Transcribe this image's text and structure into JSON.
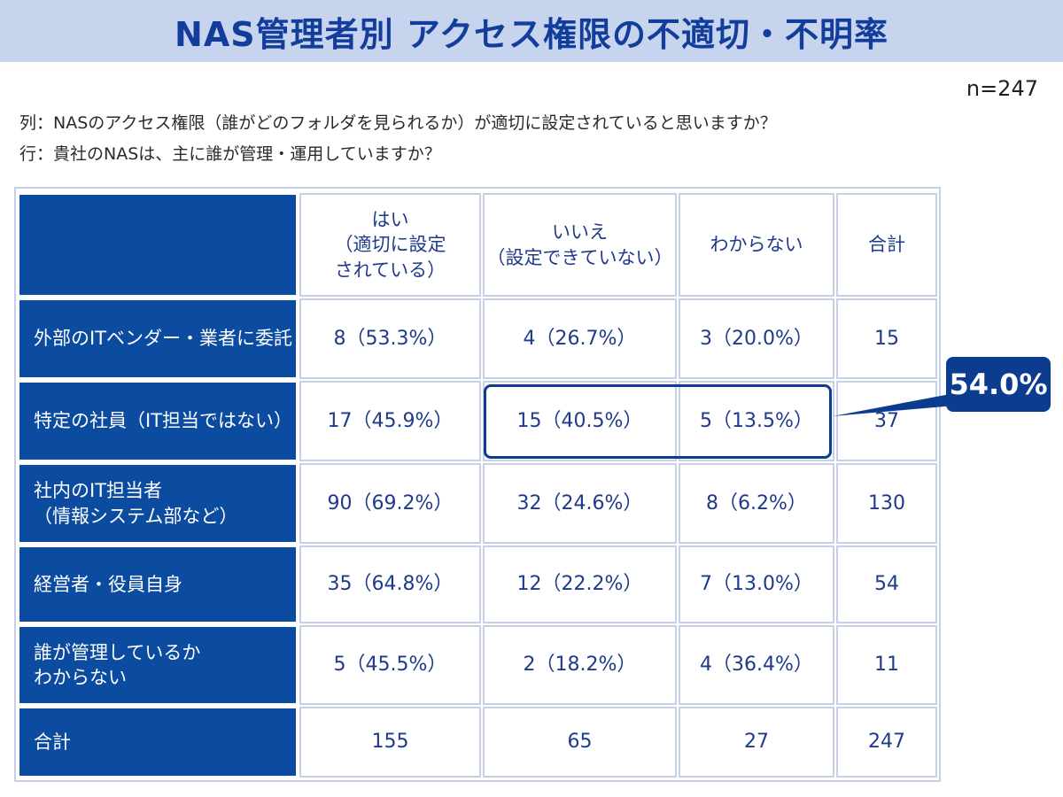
{
  "title": "NAS管理者別 アクセス権限の不適切・不明率",
  "sample_size": "n=247",
  "questions": {
    "column": "列：NASのアクセス権限（誰がどのフォルダを見られるか）が適切に設定されていると思いますか？",
    "row": "行：貴社のNASは、主に誰が管理・運用していますか？"
  },
  "colors": {
    "accent": "#0b4ba0",
    "header_bg": "#c7d4ee",
    "title": "#123d9c",
    "border": "#c6d1e6"
  },
  "chart_data": {
    "type": "table",
    "columns": [
      {
        "lines": [
          "はい",
          "（適切に設定",
          "されている）"
        ]
      },
      {
        "lines": [
          "いいえ",
          "（設定できていない）"
        ]
      },
      {
        "lines": [
          "わからない"
        ]
      },
      {
        "lines": [
          "合計"
        ]
      }
    ],
    "rows": [
      {
        "label": [
          "外部のITベンダー・業者に委託"
        ],
        "cells": [
          "8（53.3%）",
          "4（26.7%）",
          "3（20.0%）",
          "15"
        ]
      },
      {
        "label": [
          "特定の社員（IT担当ではない）"
        ],
        "cells": [
          "17（45.9%）",
          "15（40.5%）",
          "5（13.5%）",
          "37"
        ]
      },
      {
        "label": [
          "社内のIT担当者",
          "（情報システム部など）"
        ],
        "cells": [
          "90（69.2%）",
          "32（24.6%）",
          "8（6.2%）",
          "130"
        ]
      },
      {
        "label": [
          "経営者・役員自身"
        ],
        "cells": [
          "35（64.8%）",
          "12（22.2%）",
          "7（13.0%）",
          "54"
        ]
      },
      {
        "label": [
          "誰が管理しているか",
          "わからない"
        ],
        "cells": [
          "5（45.5%）",
          "2（18.2%）",
          "4（36.4%）",
          "11"
        ]
      },
      {
        "label": [
          "合計"
        ],
        "cells": [
          "155",
          "65",
          "27",
          "247"
        ]
      }
    ],
    "callout": {
      "value": "54.0%",
      "row": 1,
      "columns": [
        1,
        2
      ]
    }
  }
}
